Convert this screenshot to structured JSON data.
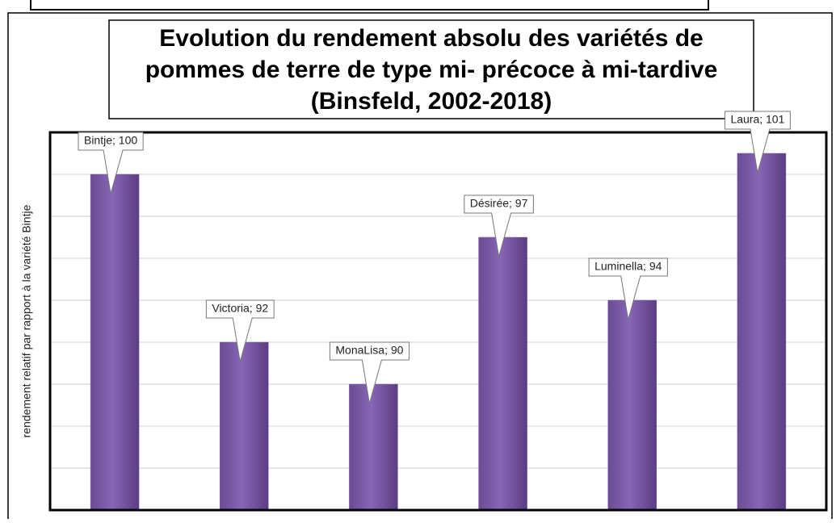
{
  "chart_data": {
    "type": "bar",
    "title": [
      "Evolution du rendement absolu des variétés de",
      "pommes de terre de type mi- précoce à mi-tardive",
      "(Binsfeld, 2002-2018)"
    ],
    "y_label": "rendement relatif par rapport à la variété Bintje",
    "categories": [
      "Bintje",
      "Victoria",
      "MonaLisa",
      "Désirée",
      "Luminella",
      "Laura"
    ],
    "values": [
      100,
      92,
      90,
      97,
      94,
      101
    ],
    "value_labels": [
      "Bintje; 100",
      "Victoria; 92",
      "MonaLisa; 90",
      "Désirée; 97",
      "Luminella; 94",
      "Laura; 101"
    ],
    "color": "#7f5fae",
    "ylim": [
      84,
      102
    ],
    "yticks": [
      86,
      88,
      90,
      92,
      94,
      96,
      98,
      100
    ],
    "grid": true
  }
}
